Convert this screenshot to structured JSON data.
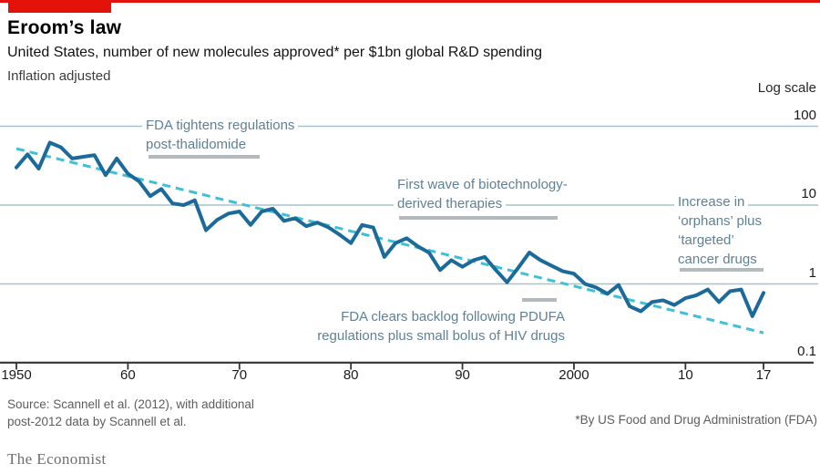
{
  "brand_color": "#E3120B",
  "header": {
    "title": "Eroom’s law",
    "subtitle": "United States, number of new molecules approved* per $1bn global R&D spending",
    "note": "Inflation adjusted",
    "scale_label": "Log scale"
  },
  "annotations": {
    "thalidomide": {
      "lines": [
        "FDA tightens regulations",
        "post-thalidomide"
      ]
    },
    "biotech": {
      "lines": [
        "First wave of biotechnology-",
        "derived therapies"
      ]
    },
    "orphans": {
      "lines": [
        "Increase in",
        "‘orphans’ plus",
        "‘targeted’",
        "cancer drugs"
      ]
    },
    "pdufa": {
      "lines": [
        "FDA clears backlog following PDUFA",
        "regulations plus small bolus of HIV drugs"
      ]
    }
  },
  "footer": {
    "source_line1": "Source: Scannell et al. (2012), with additional",
    "source_line2": "post-2012 data by Scannell et al.",
    "footnote": "*By US Food and Drug Administration (FDA)",
    "brand": "The Economist"
  },
  "chart_data": {
    "type": "line",
    "title": "Eroom’s law",
    "subtitle": "United States, number of new molecules approved* per $1bn global R&D spending, inflation adjusted",
    "y_scale": "log",
    "ylim": [
      0.1,
      100
    ],
    "grid": "horizontal",
    "grid_color": "#a8c2cc",
    "y_axis": [
      {
        "label": "100",
        "value": 100,
        "gridline": true
      },
      {
        "label": "10",
        "value": 10,
        "gridline": true
      },
      {
        "label": "1",
        "value": 1,
        "gridline": true
      },
      {
        "label": "0.1",
        "value": 0.1,
        "gridline": false
      }
    ],
    "x_ticks": [
      {
        "year": 1950,
        "label": "1950"
      },
      {
        "year": 1960,
        "label": "60"
      },
      {
        "year": 1970,
        "label": "70"
      },
      {
        "year": 1980,
        "label": "80"
      },
      {
        "year": 1990,
        "label": "90"
      },
      {
        "year": 2000,
        "label": "2000"
      },
      {
        "year": 2010,
        "label": "10"
      },
      {
        "year": 2017,
        "label": "17"
      }
    ],
    "series": [
      {
        "name": "New molecules approved per $1bn global R&D spending",
        "color": "#1b6a99",
        "x": [
          1950,
          1951,
          1952,
          1953,
          1954,
          1955,
          1956,
          1957,
          1958,
          1959,
          1960,
          1961,
          1962,
          1963,
          1964,
          1965,
          1966,
          1967,
          1968,
          1969,
          1970,
          1971,
          1972,
          1973,
          1974,
          1975,
          1976,
          1977,
          1978,
          1979,
          1980,
          1981,
          1982,
          1983,
          1984,
          1985,
          1986,
          1987,
          1988,
          1989,
          1990,
          1991,
          1992,
          1993,
          1994,
          1995,
          1996,
          1997,
          1998,
          1999,
          2000,
          2001,
          2002,
          2003,
          2004,
          2005,
          2006,
          2007,
          2008,
          2009,
          2010,
          2011,
          2012,
          2013,
          2014,
          2015,
          2016,
          2017
        ],
        "values": [
          30,
          44,
          29,
          62,
          54,
          39,
          41,
          43,
          24,
          39,
          25,
          20,
          13,
          16,
          10.5,
          10,
          11.5,
          4.8,
          6.5,
          7.8,
          8.3,
          5.6,
          8.3,
          9.0,
          6.3,
          6.8,
          5.4,
          6.0,
          5.2,
          4.2,
          3.3,
          5.6,
          5.2,
          2.2,
          3.3,
          3.8,
          3.0,
          2.5,
          1.5,
          2.0,
          1.65,
          2.0,
          2.2,
          1.5,
          1.05,
          1.6,
          2.5,
          2.0,
          1.7,
          1.45,
          1.35,
          1.0,
          0.9,
          0.75,
          0.97,
          0.52,
          0.45,
          0.59,
          0.62,
          0.54,
          0.66,
          0.72,
          0.85,
          0.59,
          0.81,
          0.85,
          0.39,
          0.77
        ]
      },
      {
        "name": "Long-run exponential trend",
        "style": "dashed",
        "color": "#3ec0d6",
        "x": [
          1950,
          2017
        ],
        "values": [
          52,
          0.24
        ]
      }
    ],
    "legend": "none"
  }
}
